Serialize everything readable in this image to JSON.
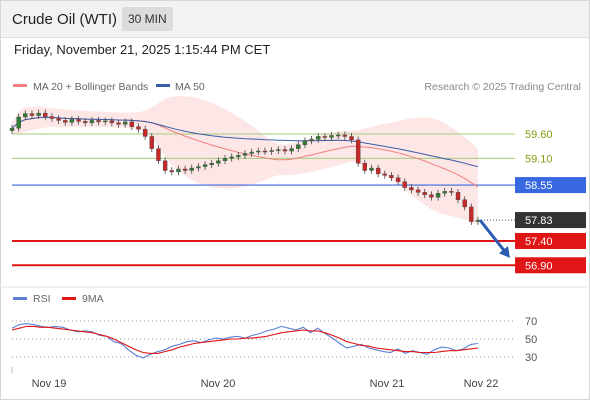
{
  "header": {
    "instrument": "Crude Oil (WTI)",
    "timeframe": "30 MIN",
    "datetime": "Friday, November 21, 2025 1:15:44 PM CET"
  },
  "colors": {
    "ma20": "#f08080",
    "ma50": "#3a5da8",
    "bollinger_band": "#fde3e3",
    "rsi": "#5b7fd6",
    "rsi_ma": "#e01515",
    "support_line": "#e01515",
    "resistance_line": "#a3cc7a",
    "pivot_line": "#3868e0",
    "candle_up": "#2e7d32",
    "candle_down": "#c62828",
    "price_marker": "#333333",
    "arrow": "#2b5cb3"
  },
  "chart_data": [
    {
      "type": "candlestick",
      "title": "Crude Oil (WTI)",
      "legend": [
        {
          "label": "MA 20 + Bollinger Bands",
          "color_key": "ma20"
        },
        {
          "label": "MA 50",
          "color_key": "ma50"
        }
      ],
      "legend_position": "top-left",
      "watermark": "Research © 2025 Trading Central",
      "ylim": [
        56.7,
        60.3
      ],
      "x_ticks": [
        "Nov 19",
        "Nov 20",
        "Nov 21",
        "Nov 22"
      ],
      "close": [
        59.72,
        59.95,
        60.02,
        59.98,
        60.03,
        59.96,
        59.92,
        59.88,
        59.84,
        59.9,
        59.86,
        59.83,
        59.88,
        59.85,
        59.87,
        59.83,
        59.8,
        59.85,
        59.75,
        59.7,
        59.55,
        59.3,
        59.05,
        58.85,
        58.82,
        58.88,
        58.85,
        58.9,
        58.93,
        58.97,
        59.0,
        59.05,
        59.1,
        59.13,
        59.16,
        59.2,
        59.23,
        59.25,
        59.24,
        59.26,
        59.28,
        59.25,
        59.3,
        59.38,
        59.46,
        59.49,
        59.55,
        59.53,
        59.57,
        59.58,
        59.55,
        59.48,
        59.0,
        58.85,
        58.9,
        58.78,
        58.75,
        58.7,
        58.62,
        58.5,
        58.45,
        58.4,
        58.35,
        58.3,
        58.38,
        58.42,
        58.4,
        58.25,
        58.1,
        57.8,
        57.83
      ],
      "lines": [
        {
          "label": "59.60",
          "value": 59.6,
          "color_key": "resistance_line",
          "style": "thin"
        },
        {
          "label": "59.10",
          "value": 59.1,
          "color_key": "resistance_line",
          "style": "thin"
        },
        {
          "label": "58.55",
          "value": 58.55,
          "color_key": "pivot_line",
          "style": "pivot"
        },
        {
          "label": "57.40",
          "value": 57.4,
          "color_key": "support_line",
          "style": "support"
        },
        {
          "label": "56.90",
          "value": 56.9,
          "color_key": "support_line",
          "style": "support"
        }
      ],
      "last_price": {
        "label": "57.83",
        "value": 57.83
      },
      "forecast_arrow": {
        "from": 57.83,
        "to": 57.05
      }
    },
    {
      "type": "line",
      "title": "RSI",
      "legend": [
        {
          "label": "RSI",
          "color_key": "rsi"
        },
        {
          "label": "9MA",
          "color_key": "rsi_ma"
        }
      ],
      "legend_position": "top-left",
      "ylim": [
        20,
        80
      ],
      "y_ticks": [
        70,
        50,
        30
      ],
      "series": [
        {
          "name": "RSI",
          "values": [
            62,
            66,
            67,
            66,
            64,
            63,
            64,
            63,
            60,
            58,
            59,
            58,
            54,
            53,
            47,
            45,
            38,
            32,
            29,
            33,
            36,
            38,
            42,
            44,
            47,
            48,
            46,
            49,
            51,
            50,
            52,
            53,
            51,
            54,
            56,
            59,
            61,
            64,
            62,
            60,
            63,
            57,
            62,
            56,
            51,
            45,
            40,
            42,
            44,
            40,
            38,
            36,
            35,
            39,
            34,
            37,
            35,
            33,
            38,
            41,
            40,
            37,
            39,
            44,
            45
          ]
        },
        {
          "name": "9MA",
          "values": [
            60,
            62,
            64,
            64,
            63,
            63,
            62,
            61,
            60,
            59,
            58,
            57,
            55,
            53,
            50,
            46,
            42,
            38,
            35,
            34,
            34,
            36,
            38,
            41,
            43,
            45,
            46,
            47,
            48,
            49,
            50,
            50,
            51,
            51,
            52,
            53,
            55,
            57,
            58,
            59,
            60,
            59,
            59,
            57,
            54,
            51,
            47,
            45,
            43,
            42,
            40,
            39,
            38,
            37,
            36,
            36,
            35,
            35,
            35,
            36,
            37,
            37,
            38,
            39,
            40
          ]
        }
      ],
      "x_ticks": [
        "Nov 19",
        "Nov 20",
        "Nov 21",
        "Nov 22"
      ]
    }
  ]
}
